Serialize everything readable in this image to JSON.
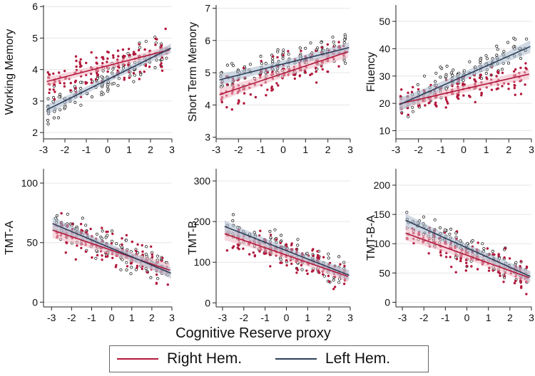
{
  "figure": {
    "xlabel": "Cognitive Reserve proxy"
  },
  "colors": {
    "right": "#b2183c",
    "left": "#2c3e5a",
    "right_band": "#f0b7c3",
    "left_band": "#a9b9cc",
    "grid": "#e6e6e6",
    "axis": "#222222"
  },
  "legend": {
    "items": [
      {
        "label": "Right Hem.",
        "color": "#b2183c"
      },
      {
        "label": "Left Hem.",
        "color": "#2c3e5a"
      }
    ]
  },
  "chart_data": [
    {
      "type": "scatter",
      "ylabel": "Working Memory",
      "xlim": [
        -3,
        3
      ],
      "ylim": [
        1.8,
        6.05
      ],
      "x_ticks": [
        -3,
        -2,
        -1,
        0,
        1,
        2,
        3
      ],
      "x_tick_labels": [
        "-3",
        "-2",
        "-1",
        "0",
        "1",
        "2",
        "3"
      ],
      "y_ticks": [
        2,
        3,
        4,
        5,
        6
      ],
      "y_tick_labels": [
        "2",
        "3",
        "4",
        "5",
        "6"
      ],
      "grid": true,
      "series": [
        {
          "name": "Right Hem.",
          "color": "right",
          "fit": {
            "x": [
              -2.85,
              2.9
            ],
            "y": [
              3.62,
              4.63
            ]
          },
          "ci": [
            0.12,
            0.05,
            0.12
          ],
          "center": [
            3.6,
            4.6
          ],
          "spread": 0.7
        },
        {
          "name": "Left Hem.",
          "color": "left",
          "fit": {
            "x": [
              -2.85,
              2.95
            ],
            "y": [
              2.72,
              4.68
            ]
          },
          "ci": [
            0.14,
            0.05,
            0.12
          ],
          "center": [
            2.9,
            4.7
          ],
          "spread": 0.55
        }
      ]
    },
    {
      "type": "scatter",
      "ylabel": "Short Term Memory",
      "xlim": [
        -3,
        3
      ],
      "ylim": [
        2.95,
        7.1
      ],
      "x_ticks": [
        -3,
        -2,
        -1,
        0,
        1,
        2,
        3
      ],
      "x_tick_labels": [
        "-3",
        "-2",
        "-1",
        "0",
        "1",
        "2",
        "3"
      ],
      "y_ticks": [
        3,
        4,
        5,
        6,
        7
      ],
      "y_tick_labels": [
        "3",
        "4",
        "5",
        "6",
        "7"
      ],
      "grid": true,
      "series": [
        {
          "name": "Right Hem.",
          "color": "right",
          "fit": {
            "x": [
              -2.85,
              2.9
            ],
            "y": [
              4.32,
              5.65
            ]
          },
          "ci": [
            0.18,
            0.06,
            0.16
          ],
          "center": [
            4.4,
            5.6
          ],
          "spread": 0.6
        },
        {
          "name": "Left Hem.",
          "color": "left",
          "fit": {
            "x": [
              -2.85,
              2.95
            ],
            "y": [
              4.78,
              5.78
            ]
          },
          "ci": [
            0.16,
            0.05,
            0.14
          ],
          "center": [
            4.8,
            5.8
          ],
          "spread": 0.5
        }
      ]
    },
    {
      "type": "scatter",
      "ylabel": "Fluency",
      "xlim": [
        -3,
        3
      ],
      "ylim": [
        7,
        56
      ],
      "x_ticks": [
        -3,
        -2,
        -1,
        0,
        1,
        2,
        3
      ],
      "x_tick_labels": [
        "-3",
        "-2",
        "-1",
        "0",
        "1",
        "2",
        "3"
      ],
      "y_ticks": [
        10,
        20,
        30,
        40,
        50
      ],
      "y_tick_labels": [
        "10",
        "20",
        "30",
        "40",
        "50"
      ],
      "grid": true,
      "series": [
        {
          "name": "Right Hem.",
          "color": "right",
          "fit": {
            "x": [
              -2.85,
              2.9
            ],
            "y": [
              19.8,
              30.7
            ]
          },
          "ci": [
            1.8,
            0.6,
            1.6
          ],
          "center": [
            20,
            30
          ],
          "spread": 6
        },
        {
          "name": "Left Hem.",
          "color": "left",
          "fit": {
            "x": [
              -2.85,
              2.95
            ],
            "y": [
              19.5,
              40.8
            ]
          },
          "ci": [
            2.2,
            0.6,
            2.0
          ],
          "center": [
            20,
            40
          ],
          "spread": 6
        }
      ]
    },
    {
      "type": "scatter",
      "ylabel": "TMT-A",
      "xlim": [
        -3.4,
        3
      ],
      "ylim": [
        -4,
        112
      ],
      "x_ticks": [
        -3,
        -2,
        -1,
        0,
        1,
        2,
        3
      ],
      "x_tick_labels": [
        "-3",
        "-2",
        "-1",
        "0",
        "1",
        "2",
        "3"
      ],
      "y_ticks": [
        0,
        50,
        100
      ],
      "y_tick_labels": [
        "0",
        "50",
        "100"
      ],
      "grid": true,
      "series": [
        {
          "name": "Right Hem.",
          "color": "right",
          "fit": {
            "x": [
              -2.95,
              2.9
            ],
            "y": [
              60.5,
              26.8
            ]
          },
          "ci": [
            6,
            1.5,
            5
          ],
          "center": [
            60,
            27
          ],
          "spread": 15
        },
        {
          "name": "Left Hem.",
          "color": "left",
          "fit": {
            "x": [
              -2.95,
              2.95
            ],
            "y": [
              66,
              24.3
            ]
          },
          "ci": [
            5,
            1.3,
            4
          ],
          "center": [
            65,
            24
          ],
          "spread": 15
        }
      ]
    },
    {
      "type": "scatter",
      "ylabel": "TMT-B",
      "xlim": [
        -3.3,
        3
      ],
      "ylim": [
        -10,
        330
      ],
      "x_ticks": [
        -3,
        -2,
        -1,
        0,
        1,
        2,
        3
      ],
      "x_tick_labels": [
        "-3",
        "-2",
        "-1",
        "0",
        "1",
        "2",
        "3"
      ],
      "y_ticks": [
        0,
        100,
        200,
        300
      ],
      "y_tick_labels": [
        "0",
        "100",
        "200",
        "300"
      ],
      "grid": true,
      "series": [
        {
          "name": "Right Hem.",
          "color": "right",
          "fit": {
            "x": [
              -2.9,
              2.9
            ],
            "y": [
              170,
              65
            ]
          },
          "ci": [
            14,
            4,
            12
          ],
          "center": [
            170,
            65
          ],
          "spread": 40
        },
        {
          "name": "Left Hem.",
          "color": "left",
          "fit": {
            "x": [
              -2.9,
              2.95
            ],
            "y": [
              188,
              68
            ]
          },
          "ci": [
            13,
            4,
            11
          ],
          "center": [
            188,
            68
          ],
          "spread": 40
        }
      ]
    },
    {
      "type": "scatter",
      "ylabel": "TMT-B-A",
      "xlim": [
        -3.3,
        3
      ],
      "ylim": [
        -8,
        228
      ],
      "x_ticks": [
        -3,
        -2,
        -1,
        0,
        1,
        2,
        3
      ],
      "x_tick_labels": [
        "-3",
        "-2",
        "-1",
        "0",
        "1",
        "2",
        "3"
      ],
      "y_ticks": [
        0,
        50,
        100,
        150,
        200
      ],
      "y_tick_labels": [
        "0",
        "50",
        "100",
        "150",
        "200"
      ],
      "grid": true,
      "series": [
        {
          "name": "Right Hem.",
          "color": "right",
          "fit": {
            "x": [
              -2.85,
              2.9
            ],
            "y": [
              118,
              42
            ]
          },
          "ci": [
            11,
            3,
            9
          ],
          "center": [
            118,
            42
          ],
          "spread": 30
        },
        {
          "name": "Left Hem.",
          "color": "left",
          "fit": {
            "x": [
              -2.85,
              2.95
            ],
            "y": [
              140,
              44
            ]
          },
          "ci": [
            10,
            3,
            8
          ],
          "center": [
            140,
            44
          ],
          "spread": 30
        }
      ]
    }
  ]
}
